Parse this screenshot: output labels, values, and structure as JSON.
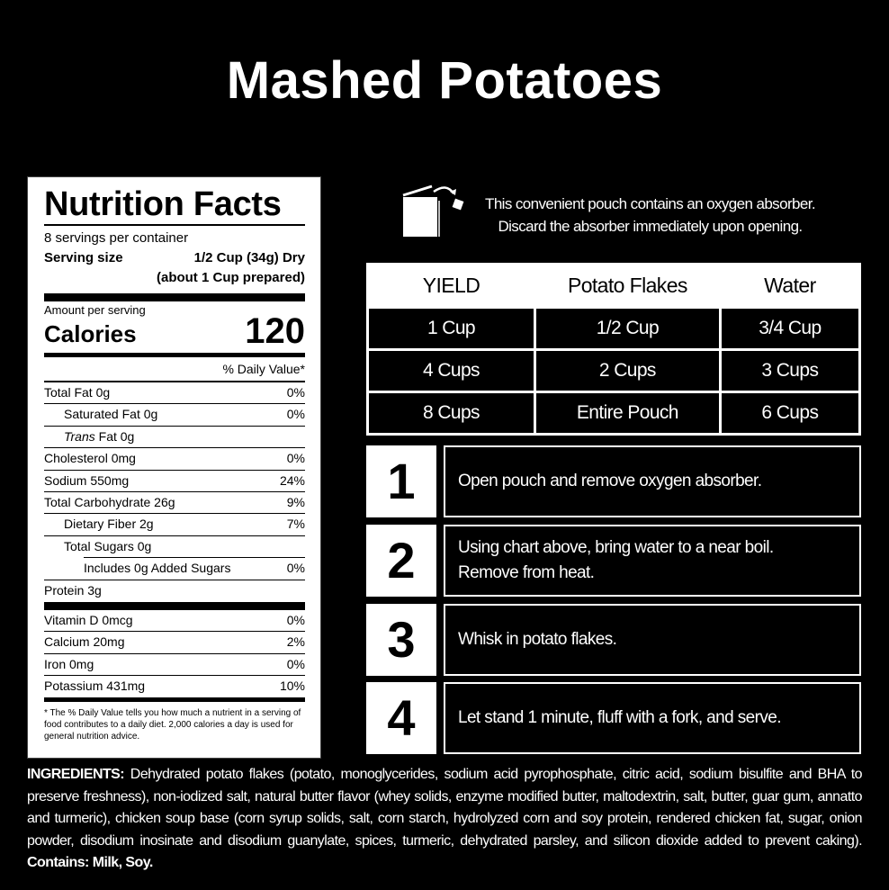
{
  "title": "Mashed Potatoes",
  "nutrition": {
    "heading": "Nutrition Facts",
    "servings": "8 servings per container",
    "serving_size_label": "Serving size",
    "serving_size_value": "1/2 Cup (34g) Dry",
    "serving_size_note": "(about 1 Cup prepared)",
    "amount_per_serving": "Amount per serving",
    "calories_label": "Calories",
    "calories_value": "120",
    "daily_value_header": "% Daily Value*",
    "rows": [
      {
        "label": "Total Fat 0g",
        "dv": "0%"
      },
      {
        "label": "Saturated Fat 0g",
        "dv": "0%"
      },
      {
        "label_italic": "Trans",
        "label": " Fat 0g",
        "dv": ""
      },
      {
        "label": "Cholesterol 0mg",
        "dv": "0%"
      },
      {
        "label": "Sodium 550mg",
        "dv": "24%"
      },
      {
        "label": "Total Carbohydrate 26g",
        "dv": "9%"
      },
      {
        "label": "Dietary Fiber 2g",
        "dv": "7%"
      },
      {
        "label": "Total Sugars 0g",
        "dv": ""
      },
      {
        "label": "Includes 0g Added Sugars",
        "dv": "0%"
      },
      {
        "label": "Protein 3g",
        "dv": ""
      }
    ],
    "vitamins": [
      {
        "label": "Vitamin D 0mcg",
        "dv": "0%"
      },
      {
        "label": "Calcium 20mg",
        "dv": "2%"
      },
      {
        "label": "Iron 0mg",
        "dv": "0%"
      },
      {
        "label": "Potassium 431mg",
        "dv": "10%"
      }
    ],
    "footnote": "* The % Daily Value tells you how much a nutrient in a serving of food contributes to a daily diet. 2,000 calories a day is used for general nutrition advice."
  },
  "notice": {
    "line1": "This convenient pouch contains an oxygen absorber.",
    "line2": "Discard the absorber immediately upon opening.",
    "icon": "pouch-absorber-icon"
  },
  "yield_table": {
    "headers": [
      "YIELD",
      "Potato Flakes",
      "Water"
    ],
    "rows": [
      [
        "1 Cup",
        "1/2 Cup",
        "3/4 Cup"
      ],
      [
        "4 Cups",
        "2 Cups",
        "3 Cups"
      ],
      [
        "8 Cups",
        "Entire Pouch",
        "6 Cups"
      ]
    ]
  },
  "steps": [
    {
      "number": "1",
      "text": "Open pouch and remove oxygen absorber."
    },
    {
      "number": "2",
      "text": "Using chart above, bring water to a near boil. Remove from heat."
    },
    {
      "number": "3",
      "text": "Whisk in potato flakes."
    },
    {
      "number": "4",
      "text": "Let stand 1 minute, fluff with a fork, and serve."
    }
  ],
  "ingredients": {
    "label": "INGREDIENTS:",
    "text": " Dehydrated potato flakes (potato, monoglycerides, sodium acid pyrophosphate, citric acid, sodium bisulfite and BHA to preserve freshness), non-iodized salt, natural butter flavor (whey solids, enzyme modified butter, maltodextrin, salt, butter, guar gum, annatto and turmeric), chicken soup base (corn syrup solids, salt, corn starch, hydrolyzed corn and soy protein, rendered chicken fat, sugar, onion powder, disodium inosinate and disodium guanylate, spices, turmeric, dehydrated parsley, and silicon dioxide added to prevent caking).",
    "contains": " Contains: Milk, Soy."
  }
}
